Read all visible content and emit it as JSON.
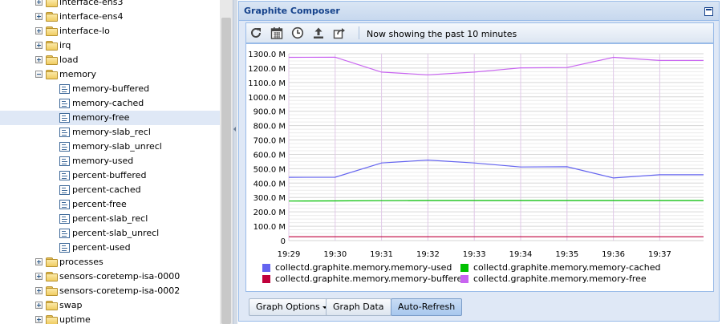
{
  "tree": {
    "items": [
      {
        "label": "interface-ens3",
        "type": "folder",
        "expanded": false,
        "depth": 0
      },
      {
        "label": "interface-ens4",
        "type": "folder",
        "expanded": false,
        "depth": 0
      },
      {
        "label": "interface-lo",
        "type": "folder",
        "expanded": false,
        "depth": 0
      },
      {
        "label": "irq",
        "type": "folder",
        "expanded": false,
        "depth": 0
      },
      {
        "label": "load",
        "type": "folder",
        "expanded": false,
        "depth": 0
      },
      {
        "label": "memory",
        "type": "folder",
        "expanded": true,
        "depth": 0
      },
      {
        "label": "memory-buffered",
        "type": "metric",
        "depth": 1
      },
      {
        "label": "memory-cached",
        "type": "metric",
        "depth": 1
      },
      {
        "label": "memory-free",
        "type": "metric",
        "depth": 1,
        "selected": true
      },
      {
        "label": "memory-slab_recl",
        "type": "metric",
        "depth": 1
      },
      {
        "label": "memory-slab_unrecl",
        "type": "metric",
        "depth": 1
      },
      {
        "label": "memory-used",
        "type": "metric",
        "depth": 1
      },
      {
        "label": "percent-buffered",
        "type": "metric",
        "depth": 1
      },
      {
        "label": "percent-cached",
        "type": "metric",
        "depth": 1
      },
      {
        "label": "percent-free",
        "type": "metric",
        "depth": 1
      },
      {
        "label": "percent-slab_recl",
        "type": "metric",
        "depth": 1
      },
      {
        "label": "percent-slab_unrecl",
        "type": "metric",
        "depth": 1
      },
      {
        "label": "percent-used",
        "type": "metric",
        "depth": 1
      },
      {
        "label": "processes",
        "type": "folder",
        "expanded": false,
        "depth": 0
      },
      {
        "label": "sensors-coretemp-isa-0000",
        "type": "folder",
        "expanded": false,
        "depth": 0
      },
      {
        "label": "sensors-coretemp-isa-0002",
        "type": "folder",
        "expanded": false,
        "depth": 0
      },
      {
        "label": "swap",
        "type": "folder",
        "expanded": false,
        "depth": 0
      },
      {
        "label": "uptime",
        "type": "folder",
        "expanded": false,
        "depth": 0
      }
    ]
  },
  "composer": {
    "title": "Graphite Composer",
    "status": "Now showing the past 10 minutes",
    "toolbar_icons": [
      "refresh-icon",
      "calendar-icon",
      "clock-icon",
      "upload-icon",
      "share-icon"
    ],
    "buttons": {
      "graph_options": "Graph Options",
      "graph_data": "Graph Data",
      "auto_refresh": "Auto-Refresh"
    }
  },
  "chart_data": {
    "type": "line",
    "title": "",
    "xlabel": "",
    "ylabel": "",
    "x": [
      "19:29",
      "19:30",
      "19:31",
      "19:32",
      "19:33",
      "19:34",
      "19:35",
      "19:36",
      "19:37",
      "19:38"
    ],
    "x_ticks": [
      "19:29",
      "19:30",
      "19:31",
      "19:32",
      "19:33",
      "19:34",
      "19:35",
      "19:36",
      "19:37"
    ],
    "y_ticks": [
      "0",
      "100.0 M",
      "200.0 M",
      "300.0 M",
      "400.0 M",
      "500.0 M",
      "600.0 M",
      "700.0 M",
      "800.0 M",
      "900.0 M",
      "1000.0 M",
      "1100.0 M",
      "1200.0 M",
      "1300.0 M"
    ],
    "ylim": [
      0,
      1300
    ],
    "y_unit": "M",
    "grid": true,
    "legend_position": "bottom",
    "series": [
      {
        "name": "collectd.graphite.memory.memory-used",
        "color": "#6464f0",
        "values": [
          440,
          441,
          540,
          560,
          540,
          512,
          514,
          436,
          458,
          458
        ]
      },
      {
        "name": "collectd.graphite.memory.memory-cached",
        "color": "#00c000",
        "values": [
          275,
          276,
          278,
          279,
          279,
          279,
          279,
          279,
          279,
          279
        ]
      },
      {
        "name": "collectd.graphite.memory.memory-buffered",
        "color": "#c0003c",
        "values": [
          27,
          27,
          27,
          27,
          27,
          27,
          27,
          27,
          27,
          27
        ]
      },
      {
        "name": "collectd.graphite.memory.memory-free",
        "color": "#c864f0",
        "values": [
          1275,
          1276,
          1172,
          1153,
          1172,
          1202,
          1204,
          1275,
          1253,
          1253
        ]
      }
    ]
  }
}
